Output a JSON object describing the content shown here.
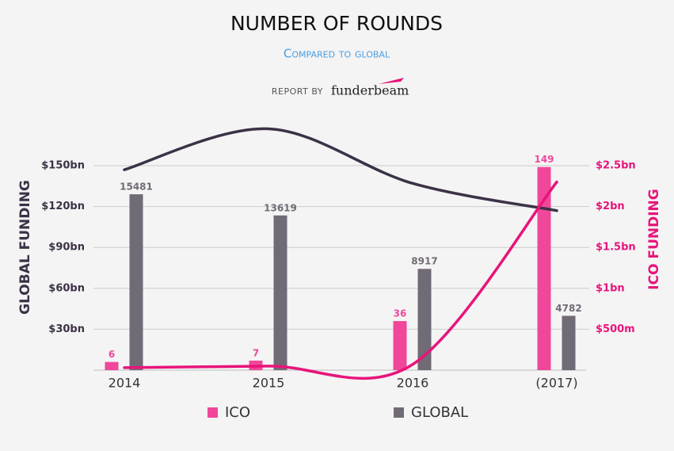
{
  "chart_data": {
    "type": "bar",
    "title": "NUMBER OF ROUNDS",
    "subtitle": "Compared to global",
    "source_prefix": "REPORT BY",
    "source_brand": "funderbeam",
    "ylabel": "GLOBAL FUNDING",
    "y2label": "ICO FUNDING",
    "categories": [
      "2014",
      "2015",
      "2016",
      "(2017)"
    ],
    "ylim": [
      0,
      180
    ],
    "yticks": [
      {
        "value": 30,
        "label": "$30bn"
      },
      {
        "value": 60,
        "label": "$60bn"
      },
      {
        "value": 90,
        "label": "$90bn"
      },
      {
        "value": 120,
        "label": "$120bn"
      },
      {
        "value": 150,
        "label": "$150bn"
      }
    ],
    "y2lim": [
      0,
      3
    ],
    "y2ticks": [
      {
        "value": 0.5,
        "label": "$500m"
      },
      {
        "value": 1,
        "label": "$1bn"
      },
      {
        "value": 1.5,
        "label": "$1.5bn"
      },
      {
        "value": 2,
        "label": "$2bn"
      },
      {
        "value": 2.5,
        "label": "$2.5bn"
      }
    ],
    "y3lim": [
      0,
      21600
    ],
    "grid": true,
    "series": [
      {
        "name": "ICO",
        "kind": "bar",
        "color": "#f0479a",
        "axis": "y",
        "values": [
          6,
          7,
          36,
          149
        ]
      },
      {
        "name": "GLOBAL",
        "kind": "bar",
        "color": "#716b76",
        "axis": "y3",
        "values": [
          15481,
          13619,
          8917,
          4782
        ]
      }
    ],
    "lines": [
      {
        "kind": "line",
        "color": "#3b3246",
        "axis": "y",
        "values": [
          147,
          177,
          137,
          117
        ]
      },
      {
        "kind": "line",
        "color": "#e8147b",
        "axis": "y2",
        "values": [
          0.03,
          0.05,
          0.07,
          2.3
        ]
      }
    ]
  }
}
